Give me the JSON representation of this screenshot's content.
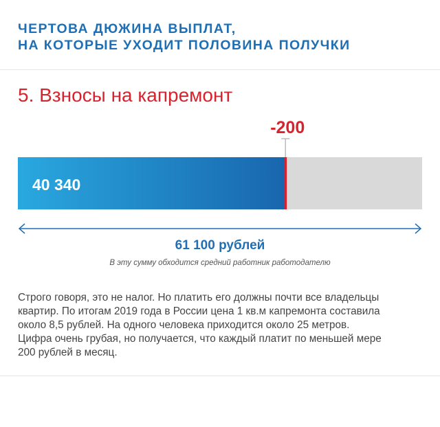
{
  "header": {
    "line1": "ЧЕРТОВА ДЮЖИНА ВЫПЛАТ,",
    "line2": "НА КОТОРЫЕ УХОДИТ ПОЛОВИНА ПОЛУЧКИ"
  },
  "section_title": "5. Взносы на капремонт",
  "colors": {
    "accent_blue": "#1f6fb5",
    "bar_gradient_start": "#29a8e0",
    "bar_gradient_end": "#1966ae",
    "highlight_red": "#d7232d",
    "remainder_gray": "#d9d9da"
  },
  "chart_data": {
    "type": "bar",
    "orientation": "horizontal-stacked",
    "total": 61100,
    "total_label": "61 100 рублей",
    "total_note": "В эту сумму обходится средний работник работодателю",
    "segments": [
      {
        "value": 40340,
        "label": "40 340"
      },
      {
        "value": 200,
        "label": "-200"
      },
      {
        "value": 20560,
        "label": ""
      }
    ]
  },
  "body_text": [
    "Строго говоря, это не налог. Но платить его должны почти все владельцы",
    "квартир. По итогам 2019 года в России цена 1 кв.м капремонта составила",
    "около 8,5 рублей. На одного человека приходится около 25 метров.",
    "Цифра очень грубая, но получается, что каждый платит по меньшей мере",
    "200 рублей в месяц."
  ]
}
